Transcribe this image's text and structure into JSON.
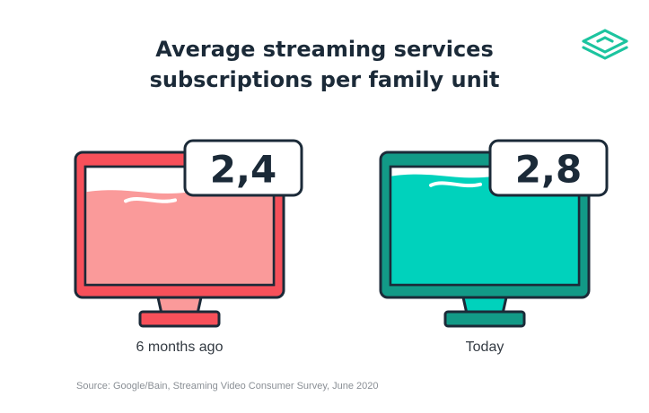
{
  "title_line1": "Average streaming services",
  "title_line2": "subscriptions per family unit",
  "source": "Source: Google/Bain, Streaming Video Consumer Survey, June 2020",
  "colors": {
    "text_dark": "#1b2a38",
    "outline": "#1b2a38",
    "red_main": "#fa9a9a",
    "red_dark": "#f7505a",
    "teal_main": "#00d2bc",
    "teal_dark": "#129a87",
    "logo": "#1cc49f"
  },
  "chart_data": {
    "type": "bar",
    "title": "Average streaming services subscriptions per family unit",
    "categories": [
      "6 months ago",
      "Today"
    ],
    "value_labels": [
      "2,4",
      "2,8"
    ],
    "values": [
      2.4,
      2.8
    ],
    "ylim": [
      0,
      3
    ],
    "legend": "none",
    "grid": false
  }
}
